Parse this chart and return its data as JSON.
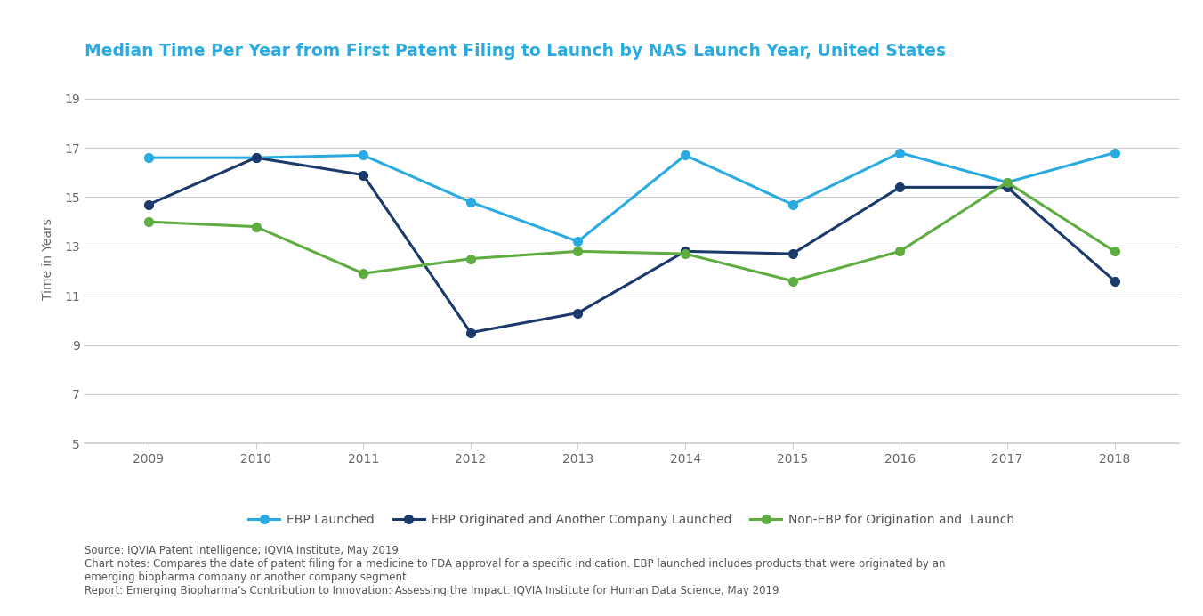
{
  "title": "Median Time Per Year from First Patent Filing to Launch by NAS Launch Year, United States",
  "xlabel": "",
  "ylabel": "Time in Years",
  "years": [
    2009,
    2010,
    2011,
    2012,
    2013,
    2014,
    2015,
    2016,
    2017,
    2018
  ],
  "series": {
    "EBP Launched": {
      "values": [
        16.6,
        16.6,
        16.7,
        14.8,
        13.2,
        16.7,
        14.7,
        16.8,
        15.6,
        16.8
      ],
      "color": "#29ABE2",
      "marker": "o",
      "linewidth": 2.2
    },
    "EBP Originated and Another Company Launched": {
      "values": [
        14.7,
        16.6,
        15.9,
        9.5,
        10.3,
        12.8,
        12.7,
        15.4,
        15.4,
        11.6
      ],
      "color": "#1B3A6B",
      "marker": "o",
      "linewidth": 2.2
    },
    "Non-EBP for Origination and  Launch": {
      "values": [
        14.0,
        13.8,
        11.9,
        12.5,
        12.8,
        12.7,
        11.6,
        12.8,
        15.6,
        12.8
      ],
      "color": "#5FAD41",
      "marker": "o",
      "linewidth": 2.2
    }
  },
  "ylim": [
    5,
    20
  ],
  "yticks": [
    5,
    7,
    9,
    11,
    13,
    15,
    17,
    19
  ],
  "background_color": "#FFFFFF",
  "title_color": "#29ABE2",
  "axis_color": "#CCCCCC",
  "footnote_lines": [
    "Source: IQVIA Patent Intelligence; IQVIA Institute, May 2019",
    "Chart notes: Compares the date of patent filing for a medicine to FDA approval for a specific indication. EBP launched includes products that were originated by an",
    "emerging biopharma company or another company segment.",
    "Report: Emerging Biopharma’s Contribution to Innovation: Assessing the Impact. IQVIA Institute for Human Data Science, May 2019"
  ],
  "title_fontsize": 13.5,
  "axis_label_fontsize": 10,
  "tick_fontsize": 10,
  "legend_fontsize": 10,
  "footnote_fontsize": 8.5,
  "marker_size": 7
}
